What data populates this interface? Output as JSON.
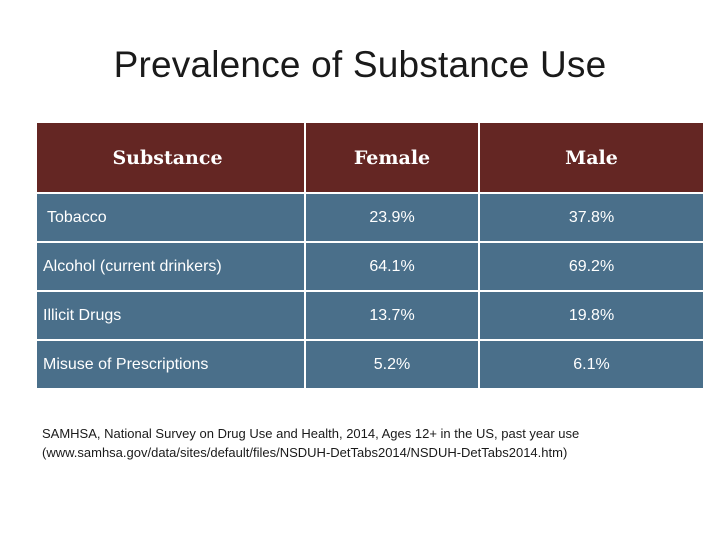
{
  "title": "Prevalence of Substance Use",
  "table": {
    "headers": [
      "Substance",
      "Female",
      "Male"
    ],
    "rows": [
      {
        "substance": "Tobacco",
        "female": "23.9%",
        "male": "37.8%"
      },
      {
        "substance": "Alcohol (current drinkers)",
        "female": "64.1%",
        "male": "69.2%"
      },
      {
        "substance": "Illicit Drugs",
        "female": "13.7%",
        "male": "19.8%"
      },
      {
        "substance": "Misuse of Prescriptions",
        "female": "5.2%",
        "male": "6.1%"
      }
    ]
  },
  "source": {
    "line1": "SAMHSA, National Survey on Drug Use and Health, 2014, Ages 12+ in the US, past year use",
    "line2": "(www.samhsa.gov/data/sites/default/files/NSDUH-DetTabs2014/NSDUH-DetTabs2014.htm)"
  },
  "colors": {
    "header_bg": "#642623",
    "row_bg": "#4a6f8a",
    "text_on_dark": "#ffffff"
  }
}
